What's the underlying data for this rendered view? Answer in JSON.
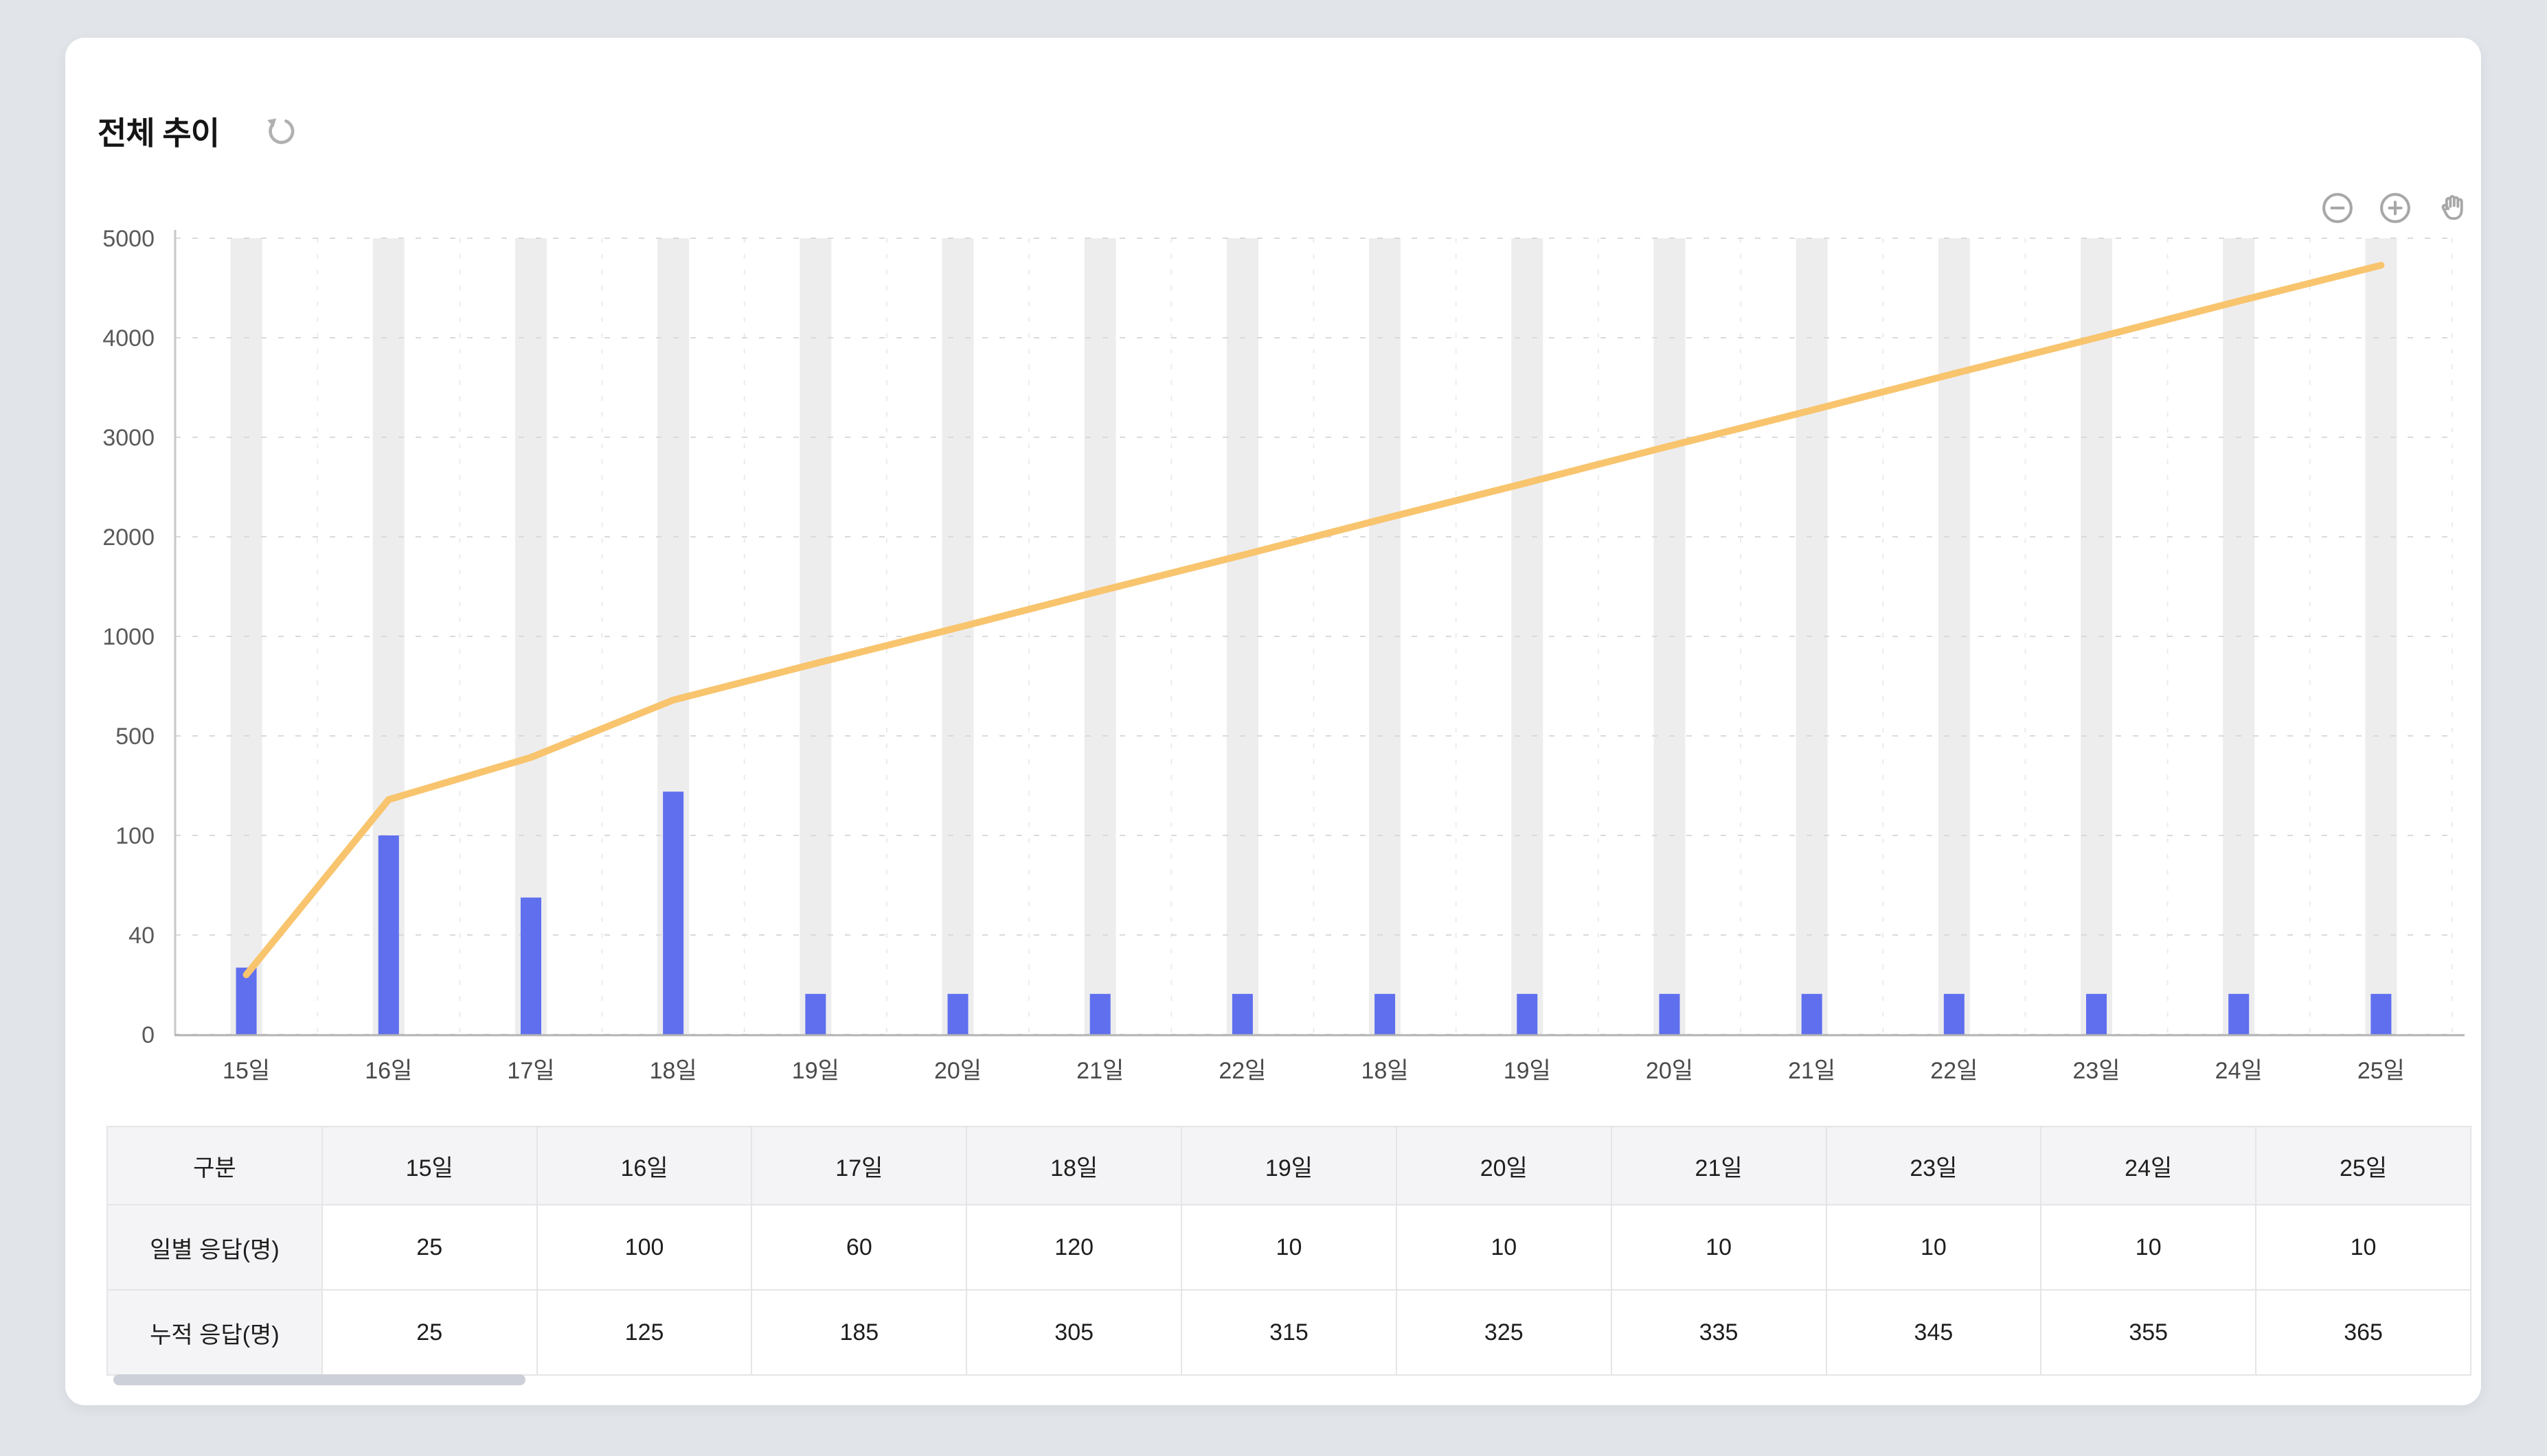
{
  "card": {
    "title": "전체 추이"
  },
  "controls": {
    "refresh": "refresh-icon",
    "zoom_out": "zoom-out-circle-icon",
    "zoom_in": "zoom-in-circle-icon",
    "pan": "hand-pan-icon"
  },
  "chart_data": {
    "type": "bar",
    "title": "전체 추이",
    "categories": [
      "15일",
      "16일",
      "17일",
      "18일",
      "19일",
      "20일",
      "21일",
      "22일",
      "18일",
      "19일",
      "20일",
      "21일",
      "22일",
      "23일",
      "24일",
      "25일"
    ],
    "y_ticks": [
      "0",
      "40",
      "100",
      "500",
      "1000",
      "2000",
      "3000",
      "4000",
      "5000"
    ],
    "ylim": [
      0,
      5000
    ],
    "grid": "horizontal-dashed",
    "legend": "none",
    "band_color": "#ededee",
    "grid_color": "#dadada",
    "vgrid_color": "#ececec",
    "axis_color": "#b3b3b3",
    "series": [
      {
        "name": "일별 응답(명)",
        "type": "bar",
        "color": "#5f6fee",
        "values": [
          25,
          100,
          60,
          120,
          10,
          10,
          10,
          10,
          10,
          10,
          10,
          10,
          10,
          10,
          10,
          10
        ],
        "height_fractions": [
          0.084,
          0.25,
          0.172,
          0.305,
          0.051,
          0.051,
          0.051,
          0.051,
          0.051,
          0.051,
          0.051,
          0.051,
          0.051,
          0.051,
          0.051,
          0.051
        ]
      },
      {
        "name": "누적 응답(명)",
        "type": "line",
        "color": "#f8c46d",
        "height_fractions": [
          0.075,
          0.295,
          0.348,
          0.42,
          0.466,
          0.511,
          0.557,
          0.602,
          0.648,
          0.693,
          0.739,
          0.784,
          0.83,
          0.875,
          0.921,
          0.966
        ]
      }
    ]
  },
  "table": {
    "headers": [
      "구분",
      "15일",
      "16일",
      "17일",
      "18일",
      "19일",
      "20일",
      "21일",
      "23일",
      "24일",
      "25일"
    ],
    "rows": [
      {
        "label": "일별 응답(명)",
        "values": [
          "25",
          "100",
          "60",
          "120",
          "10",
          "10",
          "10",
          "10",
          "10",
          "10"
        ]
      },
      {
        "label": "누적 응답(명)",
        "values": [
          "25",
          "125",
          "185",
          "305",
          "315",
          "325",
          "335",
          "345",
          "355",
          "365"
        ]
      }
    ]
  }
}
